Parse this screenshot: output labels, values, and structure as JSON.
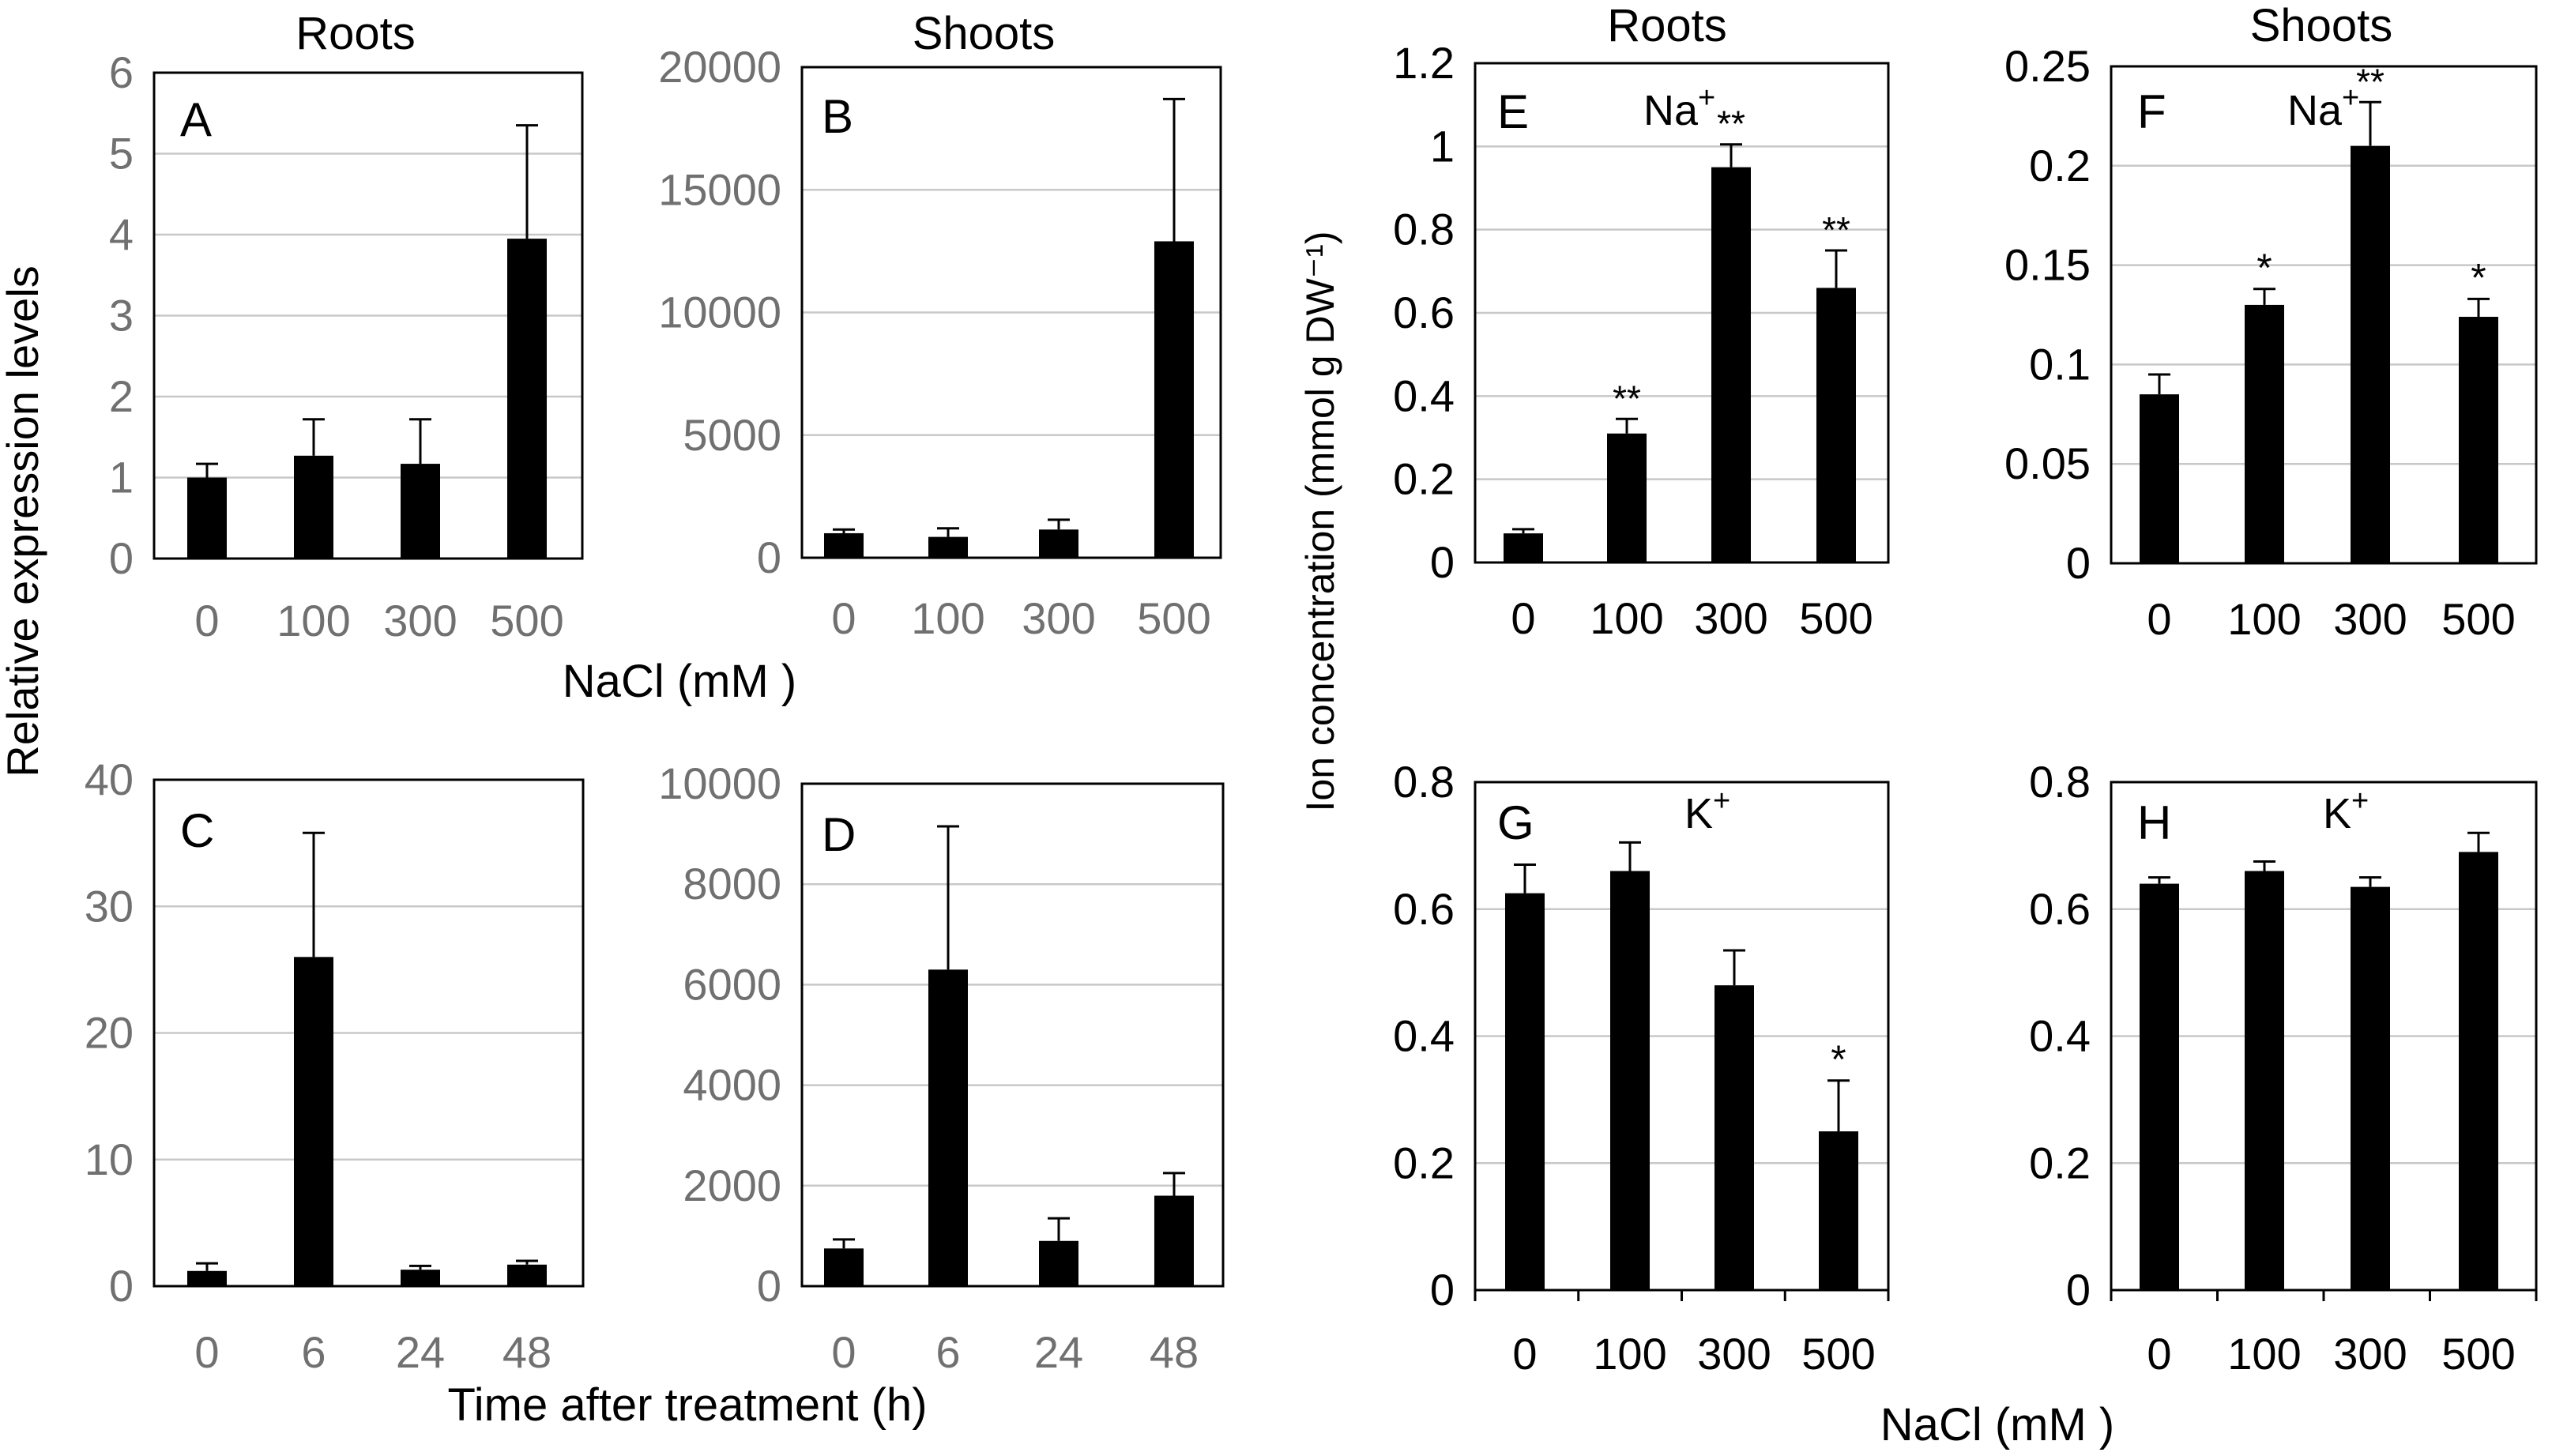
{
  "labels": {
    "panel_titles": [
      "Roots",
      "Shoots",
      "Roots",
      "Shoots"
    ],
    "ylabel_left": "Relative expression levels",
    "ylabel_right": "Ion concentration (mmol g DW⁻¹)",
    "xlabel_top_left": "NaCl (mM )",
    "xlabel_bottom_left": "Time after treatment (h)",
    "xlabel_right": "NaCl (mM )"
  },
  "chart_data": [
    {
      "id": "A",
      "type": "bar",
      "letter": "A",
      "title": "Roots",
      "categories": [
        "0",
        "100",
        "300",
        "500"
      ],
      "values": [
        1.0,
        1.27,
        1.17,
        3.95
      ],
      "errors": [
        0.17,
        0.45,
        0.55,
        1.4
      ],
      "ylim": [
        0,
        6
      ],
      "ticks": [
        "0",
        "1",
        "2",
        "3",
        "4",
        "5",
        "6"
      ]
    },
    {
      "id": "B",
      "type": "bar",
      "letter": "B",
      "title": "Shoots",
      "categories": [
        "0",
        "100",
        "300",
        "500"
      ],
      "values": [
        1000,
        850,
        1150,
        12900
      ],
      "errors": [
        150,
        350,
        400,
        5800
      ],
      "ylim": [
        0,
        20000
      ],
      "ticks": [
        "0",
        "5000",
        "10000",
        "15000",
        "20000"
      ]
    },
    {
      "id": "C",
      "type": "bar",
      "letter": "C",
      "title": "",
      "categories": [
        "0",
        "6",
        "24",
        "48"
      ],
      "values": [
        1.2,
        26.0,
        1.3,
        1.7
      ],
      "errors": [
        0.6,
        9.8,
        0.3,
        0.3
      ],
      "ylim": [
        0,
        40
      ],
      "ticks": [
        "0",
        "10",
        "20",
        "30",
        "40"
      ]
    },
    {
      "id": "D",
      "type": "bar",
      "letter": "D",
      "title": "",
      "categories": [
        "0",
        "6",
        "24",
        "48"
      ],
      "values": [
        750,
        6300,
        900,
        1800
      ],
      "errors": [
        180,
        2850,
        450,
        450
      ],
      "ylim": [
        0,
        10000
      ],
      "ticks": [
        "0",
        "2000",
        "4000",
        "6000",
        "8000",
        "10000"
      ]
    },
    {
      "id": "E",
      "type": "bar",
      "letter": "E",
      "title": "Roots",
      "ion": "Na",
      "ion_sup": "+",
      "categories": [
        "0",
        "100",
        "300",
        "500"
      ],
      "values": [
        0.07,
        0.31,
        0.95,
        0.66
      ],
      "errors": [
        0.01,
        0.035,
        0.055,
        0.09
      ],
      "significance": [
        "",
        "**",
        "**",
        "**"
      ],
      "ylim": [
        0,
        1.2
      ],
      "ticks": [
        "0",
        "0.2",
        "0.4",
        "0.6",
        "0.8",
        "1",
        "1.2"
      ]
    },
    {
      "id": "F",
      "type": "bar",
      "letter": "F",
      "title": "Shoots",
      "ion": "Na",
      "ion_sup": "+",
      "categories": [
        "0",
        "100",
        "300",
        "500"
      ],
      "values": [
        0.085,
        0.13,
        0.21,
        0.124
      ],
      "errors": [
        0.01,
        0.008,
        0.022,
        0.009
      ],
      "significance": [
        "",
        "*",
        "**",
        "*"
      ],
      "ylim": [
        0,
        0.25
      ],
      "ticks": [
        "0",
        "0.05",
        "0.1",
        "0.15",
        "0.2",
        "0.25"
      ]
    },
    {
      "id": "G",
      "type": "bar",
      "letter": "G",
      "title": "",
      "ion": "K",
      "ion_sup": "+",
      "categories": [
        "0",
        "100",
        "300",
        "500"
      ],
      "values": [
        0.625,
        0.66,
        0.48,
        0.25
      ],
      "errors": [
        0.045,
        0.045,
        0.055,
        0.08
      ],
      "significance": [
        "",
        "",
        "",
        "*"
      ],
      "ylim": [
        0,
        0.8
      ],
      "ticks": [
        "0",
        "0.2",
        "0.4",
        "0.6",
        "0.8"
      ]
    },
    {
      "id": "H",
      "type": "bar",
      "letter": "H",
      "title": "",
      "ion": "K",
      "ion_sup": "+",
      "categories": [
        "0",
        "100",
        "300",
        "500"
      ],
      "values": [
        0.64,
        0.66,
        0.635,
        0.69
      ],
      "errors": [
        0.01,
        0.015,
        0.015,
        0.03
      ],
      "significance": [
        "",
        "",
        "",
        ""
      ],
      "ylim": [
        0,
        0.8
      ],
      "ticks": [
        "0",
        "0.2",
        "0.4",
        "0.6",
        "0.8"
      ]
    }
  ]
}
